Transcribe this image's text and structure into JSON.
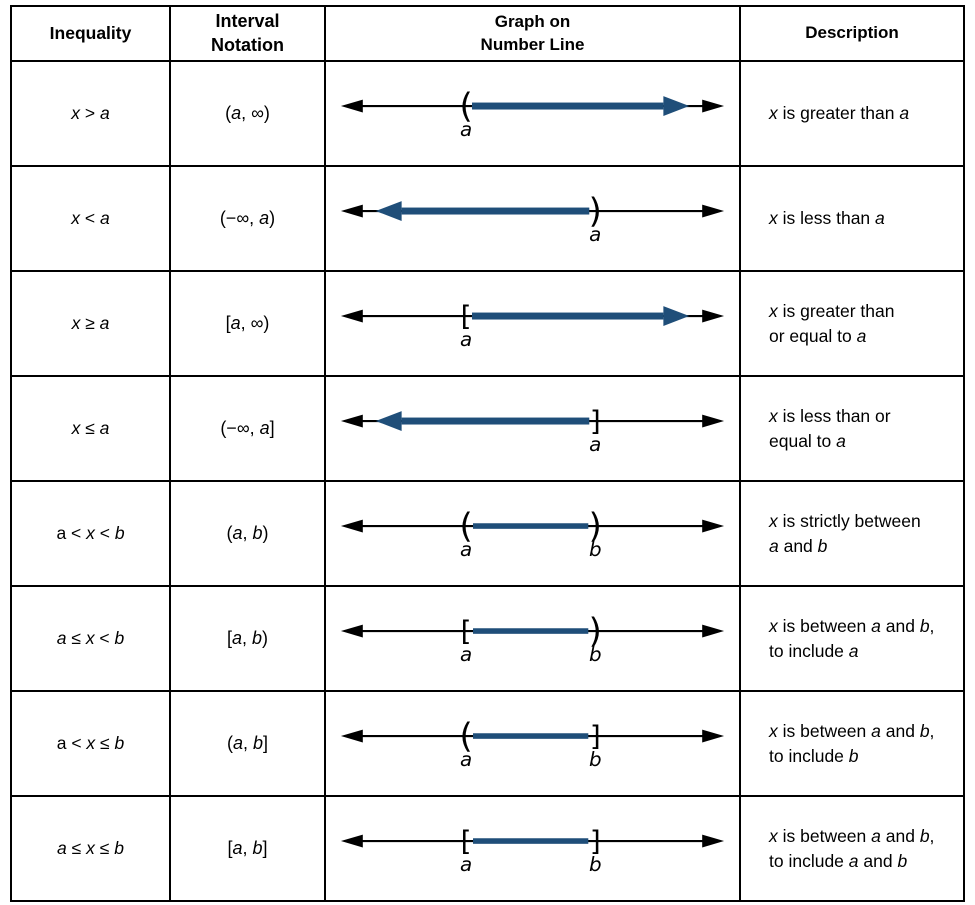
{
  "colors": {
    "highlight": "#1f4e79",
    "line": "#000000",
    "border": "#000000",
    "background": "#ffffff"
  },
  "header": {
    "columns": [
      "Inequality",
      "Interval\nNotation",
      "Graph on\nNumber Line",
      "Description"
    ]
  },
  "rows": [
    {
      "inequality": [
        {
          "t": "x",
          "i": true
        },
        {
          "t": " > "
        },
        {
          "t": "a",
          "i": true
        }
      ],
      "interval": "(a, ∞)",
      "description": "x is greater than a",
      "graph": {
        "points": [
          {
            "pos": 0.32,
            "symbol": "(",
            "label": "a"
          }
        ],
        "shade": {
          "from": 0.32,
          "to": "right"
        }
      }
    },
    {
      "inequality": [
        {
          "t": "x",
          "i": true
        },
        {
          "t": " < "
        },
        {
          "t": "a",
          "i": true
        }
      ],
      "interval": "(−∞, a)",
      "description": "x is less than a",
      "graph": {
        "points": [
          {
            "pos": 0.67,
            "symbol": ")",
            "label": "a"
          }
        ],
        "shade": {
          "from": "left",
          "to": 0.67
        }
      }
    },
    {
      "inequality": [
        {
          "t": "x",
          "i": true
        },
        {
          "t": " ≥ "
        },
        {
          "t": "a",
          "i": true
        }
      ],
      "interval": "[a, ∞)",
      "description": "x is greater than\nor equal to a",
      "graph": {
        "points": [
          {
            "pos": 0.32,
            "symbol": "[",
            "label": "a"
          }
        ],
        "shade": {
          "from": 0.32,
          "to": "right"
        }
      }
    },
    {
      "inequality": [
        {
          "t": "x",
          "i": true
        },
        {
          "t": " ≤ "
        },
        {
          "t": "a",
          "i": true
        }
      ],
      "interval": "(−∞, a]",
      "description": "x is less than or\nequal to a",
      "graph": {
        "points": [
          {
            "pos": 0.67,
            "symbol": "]",
            "label": "a"
          }
        ],
        "shade": {
          "from": "left",
          "to": 0.67
        }
      }
    },
    {
      "inequality": [
        {
          "t": "a"
        },
        {
          "t": " < "
        },
        {
          "t": "x",
          "i": true
        },
        {
          "t": " < "
        },
        {
          "t": "b",
          "i": true
        }
      ],
      "interval": "(a, b)",
      "description": "x is strictly between\na and b",
      "graph": {
        "points": [
          {
            "pos": 0.32,
            "symbol": "(",
            "label": "a"
          },
          {
            "pos": 0.67,
            "symbol": ")",
            "label": "b"
          }
        ],
        "shade": {
          "from": 0.32,
          "to": 0.67
        }
      }
    },
    {
      "inequality": [
        {
          "t": "a",
          "i": true
        },
        {
          "t": " ≤ "
        },
        {
          "t": "x",
          "i": true
        },
        {
          "t": " < "
        },
        {
          "t": "b",
          "i": true
        }
      ],
      "interval": "[a, b)",
      "description": "x is between a and b,\nto include a",
      "graph": {
        "points": [
          {
            "pos": 0.32,
            "symbol": "[",
            "label": "a"
          },
          {
            "pos": 0.67,
            "symbol": ")",
            "label": "b"
          }
        ],
        "shade": {
          "from": 0.32,
          "to": 0.67
        }
      }
    },
    {
      "inequality": [
        {
          "t": "a"
        },
        {
          "t": " < "
        },
        {
          "t": "x",
          "i": true
        },
        {
          "t": " ≤ "
        },
        {
          "t": "b",
          "i": true
        }
      ],
      "interval": "(a, b]",
      "description": "x is between a and b,\nto include b",
      "graph": {
        "points": [
          {
            "pos": 0.32,
            "symbol": "(",
            "label": "a"
          },
          {
            "pos": 0.67,
            "symbol": "]",
            "label": "b"
          }
        ],
        "shade": {
          "from": 0.32,
          "to": 0.67
        }
      }
    },
    {
      "inequality": [
        {
          "t": "a",
          "i": true
        },
        {
          "t": " ≤ "
        },
        {
          "t": "x",
          "i": true
        },
        {
          "t": " ≤ "
        },
        {
          "t": "b",
          "i": true
        }
      ],
      "interval": "[a, b]",
      "description": "x is between a and b,\nto include a and b",
      "graph": {
        "points": [
          {
            "pos": 0.32,
            "symbol": "[",
            "label": "a"
          },
          {
            "pos": 0.67,
            "symbol": "]",
            "label": "b"
          }
        ],
        "shade": {
          "from": 0.32,
          "to": 0.67
        }
      }
    }
  ]
}
